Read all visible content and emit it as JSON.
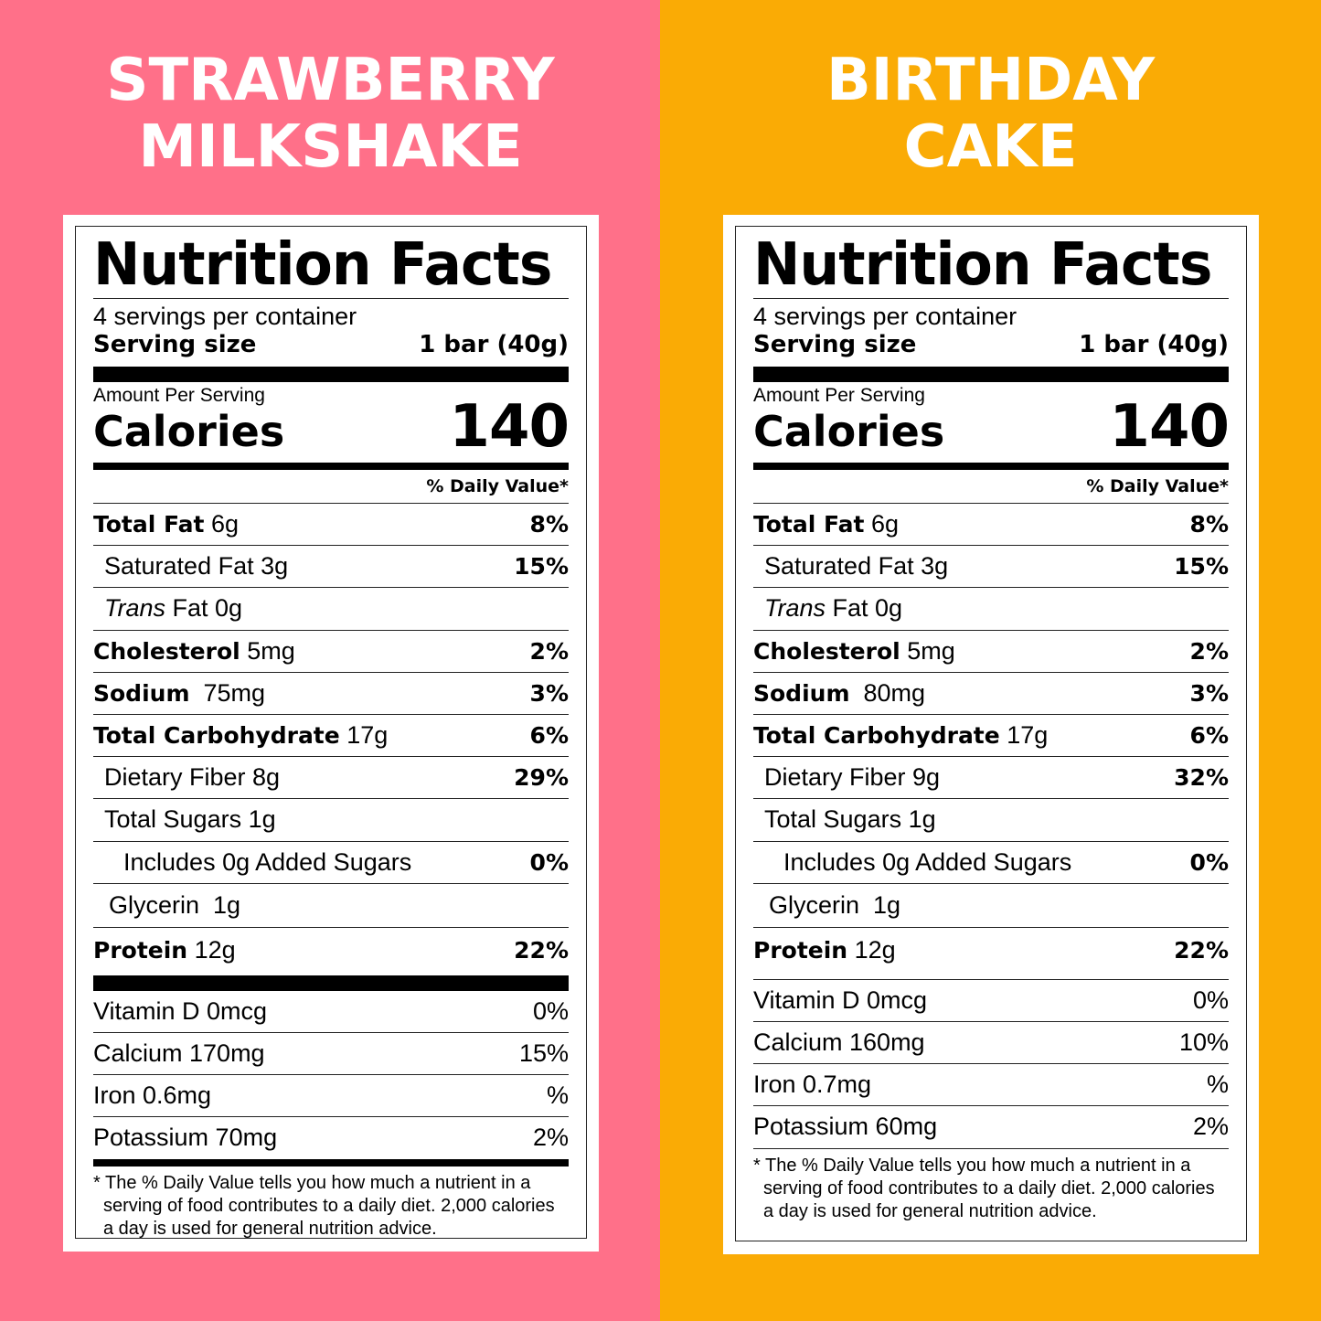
{
  "colors": {
    "left_bg": "#ff7089",
    "right_bg": "#faab05"
  },
  "labels": [
    {
      "flavor_line1": "STRAWBERRY",
      "flavor_line2": "MILKSHAKE",
      "title": "Nutrition Facts",
      "servings": "4 servings per container",
      "serving_size_label": "Serving size",
      "serving_size_value": "1 bar (40g)",
      "amount_per": "Amount Per Serving",
      "calories_label": "Calories",
      "calories": "140",
      "dv_head": "% Daily Value*",
      "nutrients": [
        {
          "bold": "Total Fat",
          "rest": " 6g",
          "pct": "8%"
        },
        {
          "bold": "",
          "rest": "Saturated Fat 3g",
          "pct": "15%"
        },
        {
          "italic": "Trans",
          "rest": " Fat 0g",
          "pct": ""
        },
        {
          "bold": "Cholesterol",
          "rest": " 5mg",
          "pct": "2%"
        },
        {
          "bold": "Sodium",
          "rest": "  75mg",
          "pct": "3%"
        },
        {
          "bold": "Total Carbohydrate",
          "rest": " 17g",
          "pct": "6%"
        },
        {
          "bold": "",
          "rest": "Dietary Fiber 8g",
          "pct": "29%"
        },
        {
          "bold": "",
          "rest": "Total Sugars 1g",
          "pct": ""
        },
        {
          "bold": "",
          "rest": "Includes 0g Added Sugars",
          "pct": "0%"
        },
        {
          "bold": "",
          "rest": "Glycerin  1g",
          "pct": ""
        },
        {
          "bold": "Protein",
          "rest": " 12g",
          "pct": "22%"
        }
      ],
      "vitamins": [
        {
          "name": "Vitamin D 0mcg",
          "pct": "0%"
        },
        {
          "name": "Calcium 170mg",
          "pct": "15%"
        },
        {
          "name": "Iron 0.6mg",
          "pct": "%"
        },
        {
          "name": "Potassium 70mg",
          "pct": "2%"
        }
      ],
      "footnote": "* The % Daily Value tells you how much a nutrient in a serving of food contributes to a daily diet. 2,000 calories a day is used for general nutrition advice."
    },
    {
      "flavor_line1": "BIRTHDAY",
      "flavor_line2": "CAKE",
      "title": "Nutrition Facts",
      "servings": "4 servings per container",
      "serving_size_label": "Serving size",
      "serving_size_value": "1 bar (40g)",
      "amount_per": "Amount Per Serving",
      "calories_label": "Calories",
      "calories": "140",
      "dv_head": "% Daily Value*",
      "nutrients": [
        {
          "bold": "Total Fat",
          "rest": " 6g",
          "pct": "8%"
        },
        {
          "bold": "",
          "rest": "Saturated Fat 3g",
          "pct": "15%"
        },
        {
          "italic": "Trans",
          "rest": " Fat 0g",
          "pct": ""
        },
        {
          "bold": "Cholesterol",
          "rest": " 5mg",
          "pct": "2%"
        },
        {
          "bold": "Sodium",
          "rest": "  80mg",
          "pct": "3%"
        },
        {
          "bold": "Total Carbohydrate",
          "rest": " 17g",
          "pct": "6%"
        },
        {
          "bold": "",
          "rest": "Dietary Fiber 9g",
          "pct": "32%"
        },
        {
          "bold": "",
          "rest": "Total Sugars 1g",
          "pct": ""
        },
        {
          "bold": "",
          "rest": "Includes 0g Added Sugars",
          "pct": "0%"
        },
        {
          "bold": "",
          "rest": "Glycerin  1g",
          "pct": ""
        },
        {
          "bold": "Protein",
          "rest": " 12g",
          "pct": "22%"
        }
      ],
      "vitamins": [
        {
          "name": "Vitamin D 0mcg",
          "pct": "0%"
        },
        {
          "name": "Calcium 160mg",
          "pct": "10%"
        },
        {
          "name": "Iron 0.7mg",
          "pct": "%"
        },
        {
          "name": "Potassium 60mg",
          "pct": "2%"
        }
      ],
      "footnote": "* The % Daily Value tells you how much a nutrient in a serving of food contributes to a daily diet. 2,000 calories a day is used for general nutrition advice."
    }
  ]
}
